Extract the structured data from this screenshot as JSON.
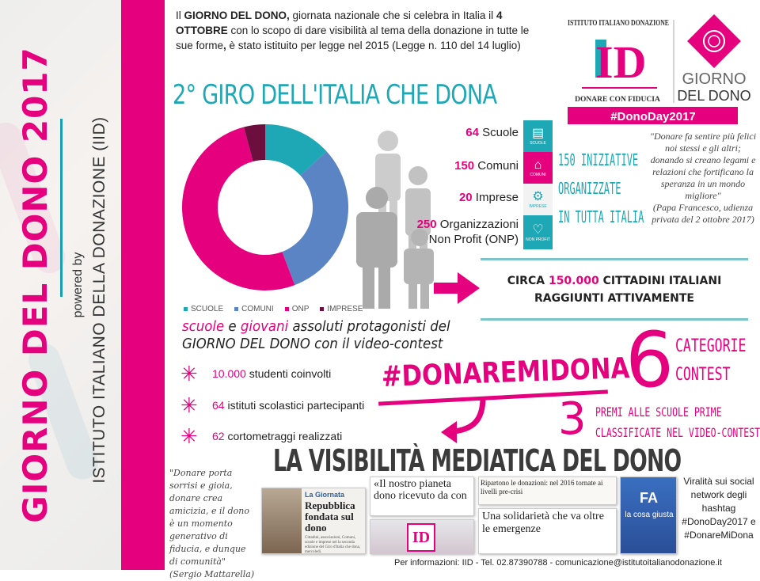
{
  "sidebar": {
    "title": "GIORNO DEL DONO 2017",
    "powered_by": "powered by",
    "institute": "ISTITUTO ITALIANO DELLA DONAZIONE (IID)"
  },
  "intro": {
    "p1a": "Il ",
    "p1b": "GIORNO DEL DONO,",
    "p1c": " giornata nazionale che si celebra in Italia il ",
    "p1d": "4 OTTOBRE",
    "p1e": " con lo scopo di dare visibilità al tema della donazione in tutte le sue forme",
    "p1f": ",",
    "p1g": " è stato istituito per legge nel 2015 (Legge n. 110 del 14 luglio)"
  },
  "logo": {
    "arc_text": "ISTITUTO ITALIANO DONAZIONE",
    "mark": "ID",
    "tagline": "DONARE CON FIDUCIA",
    "giorno": "GIORNO",
    "deldono": "DEL DONO",
    "hashtag": "#DonoDay2017"
  },
  "headline": "2° GIRO DELL'ITALIA CHE DONA",
  "chart_data": {
    "type": "pie",
    "donut": true,
    "categories": [
      "SCUOLE",
      "COMUNI",
      "ONP",
      "IMPRESE"
    ],
    "values": [
      64,
      150,
      250,
      20
    ],
    "colors": [
      "#1ea7b5",
      "#5b84c4",
      "#e5007e",
      "#6d0f3e"
    ],
    "legend": "bottom"
  },
  "stats": [
    {
      "num": "64",
      "label": " Scuole",
      "icon": "book-icon",
      "tag": "SCUOLE",
      "color": "#1ea7b5"
    },
    {
      "num": "150",
      "label": " Comuni",
      "icon": "building-icon",
      "tag": "COMUNI",
      "color": "#e5007e"
    },
    {
      "num": "20",
      "label": " Imprese",
      "icon": "gears-icon",
      "tag": "IMPRESE",
      "color": "#f2f2f2"
    },
    {
      "num": "250",
      "label": " Organizzazioni",
      "label2": "Non Profit (ONP)",
      "icon": "heart-icon",
      "tag": "NON PROFIT",
      "color": "#1ea7b5"
    }
  ],
  "icon_brand": "DONODAY",
  "iniziative": [
    "150 INIZIATIVE",
    "ORGANIZZATE",
    "IN TUTTA ITALIA"
  ],
  "quote_pope": {
    "text": "\"Donare fa sentire più felici noi stessi e gli altri; donando si creano legami e relazioni che fortificano la speranza in un mondo migliore\"",
    "author": "(Papa Francesco, udienza privata del 2 ottobre 2017)"
  },
  "reach": {
    "a": "CIRCA ",
    "num": "150.000",
    "b": " CITTADINI ITALIANI",
    "line2": "RAGGIUNTI ATTIVAMENTE"
  },
  "youth": {
    "w1": "scuole",
    "w2": " e ",
    "w3": "giovani",
    "w4": " assoluti protagonisti del",
    "line2a": "GIORNO DEL DONO",
    "line2b": " con il video-contest"
  },
  "bullets": [
    {
      "num": "10.000",
      "text": " studenti coinvolti"
    },
    {
      "num": "64",
      "text": " istituti scolastici partecipanti"
    },
    {
      "num": "62",
      "text": " cortometraggi realizzati"
    }
  ],
  "contest": {
    "hashtag": "#DONAREMIDONA",
    "six": "6",
    "cat1": "CATEGORIE",
    "cat2": "CONTEST",
    "three": "3",
    "premi1": "PREMI ALLE SCUOLE PRIME",
    "premi2": "CLASSIFICATE NEL VIDEO-CONTEST"
  },
  "media": {
    "title": "LA VISIBILITÀ MEDIATICA DEL DONO",
    "clips": {
      "giornata": "La Giornata",
      "repubblica": "Repubblica fondata sul dono",
      "cittadini": "Cittadini, associazioni, Comuni, scuole e imprese nel la seconda edizione del Giro d'Italia che dona, mercoledì.",
      "pianeta": "«Il nostro pianeta dono ricevuto da con",
      "ripartono": "Ripartono le donazioni: nel 2016 tornate ai livelli pre-crisi",
      "solidarieta": "Una solidarietà che va oltre le emergenze",
      "fa": "FA",
      "cosa": "la cosa giusta"
    }
  },
  "quote_mattarella": {
    "text": "\"Donare porta sorrisi e gioia, donare crea amicizia, e il dono è un momento generativo di fiducia, e dunque di comunità\"",
    "author": "(Sergio Mattarella)"
  },
  "viral": "Viralità sui social network degli hashtag #DonoDay2017 e #DonareMiDona",
  "footer": "Per informazioni: IID - Tel. 02.87390788 - comunicazione@istitutoitalianodonazione.it",
  "colors": {
    "pink": "#e5007e",
    "teal": "#1ea7b5",
    "blue": "#5b84c4",
    "maroon": "#6d0f3e"
  }
}
